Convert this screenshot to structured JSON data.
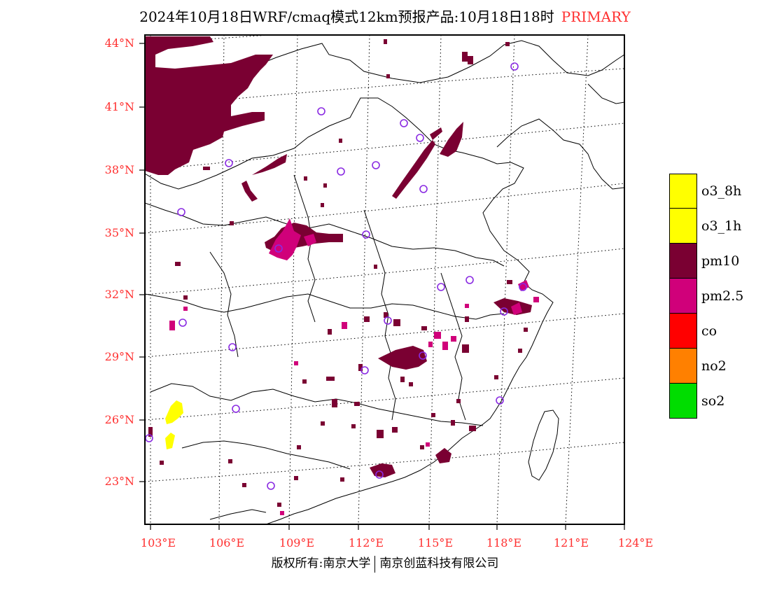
{
  "title": {
    "main": "2024年10月18日WRF/cmaq模式12km预报产品:10月18日18时",
    "tag": "PRIMARY"
  },
  "axes": {
    "lat_labels": [
      "44°N",
      "41°N",
      "38°N",
      "35°N",
      "32°N",
      "29°N",
      "26°N",
      "23°N"
    ],
    "lon_labels": [
      "103°E",
      "106°E",
      "109°E",
      "112°E",
      "115°E",
      "118°E",
      "121°E",
      "124°E"
    ]
  },
  "legend": [
    {
      "label": "o3_8h",
      "color": "#ffff00"
    },
    {
      "label": "o3_1h",
      "color": "#ffff00"
    },
    {
      "label": "pm10",
      "color": "#7a0032"
    },
    {
      "label": "pm2.5",
      "color": "#d0007a"
    },
    {
      "label": "co",
      "color": "#ff0000"
    },
    {
      "label": "no2",
      "color": "#ff8000"
    },
    {
      "label": "so2",
      "color": "#00dd00"
    }
  ],
  "footer": {
    "left": "版权所有:南京大学",
    "right": "南京创蓝科技有限公司"
  }
}
